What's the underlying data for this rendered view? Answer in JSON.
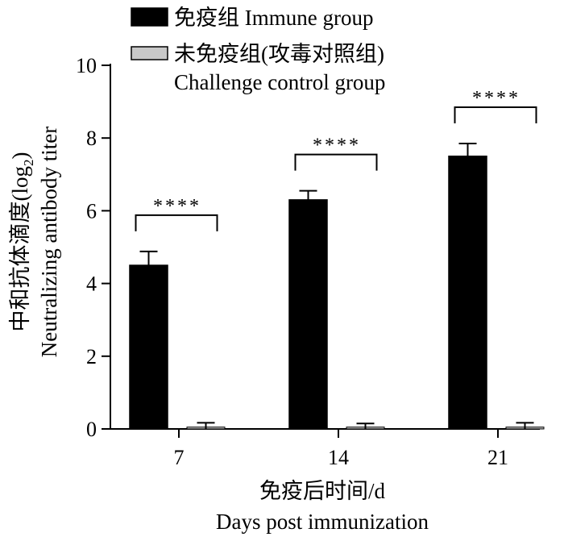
{
  "chart_data": {
    "type": "bar",
    "title": "",
    "categories": [
      "7",
      "14",
      "21"
    ],
    "series": [
      {
        "name": "免疫组 Immune group",
        "values": [
          4.5,
          6.3,
          7.5
        ],
        "errors": [
          0.38,
          0.25,
          0.35
        ],
        "color": "#000000"
      },
      {
        "name_line1": "未免疫组(攻毒对照组)",
        "name_line2": "Challenge control group",
        "values": [
          0.05,
          0.05,
          0.05
        ],
        "errors": [
          0.12,
          0.1,
          0.12
        ],
        "color": "#c8c8c8"
      }
    ],
    "xlabel_line1": "免疫后时间/d",
    "xlabel_line2": "Days post immunization",
    "ylabel_line1": "中和抗体滴度(log",
    "ylabel_sub": "2",
    "ylabel_close": ")",
    "ylabel_line2": "Neutralizing antibody titer",
    "ylim": [
      0,
      10
    ],
    "yticks": [
      "0",
      "2",
      "4",
      "6",
      "8",
      "10"
    ],
    "significance": [
      "****",
      "****",
      "****"
    ],
    "legend_position": "top-left",
    "grid": false
  }
}
